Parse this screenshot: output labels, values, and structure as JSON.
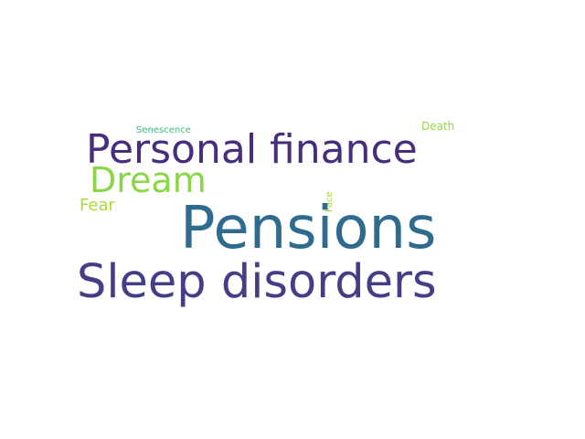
{
  "words": {
    "pensions": {
      "text": "Pensions",
      "color": "#2e6b8e"
    },
    "sleep_disorders": {
      "text": "Sleep disorders",
      "color": "#433e85"
    },
    "personal_finance": {
      "text": "Personal finance",
      "color": "#472d7b"
    },
    "dream": {
      "text": "Dream",
      "color": "#8bd646"
    },
    "fear": {
      "text": "Fear",
      "color": "#a8db34"
    },
    "senescence": {
      "text": "Senescence",
      "color": "#3bbb75"
    },
    "death": {
      "text": "Death",
      "color": "#95d840"
    },
    "face": {
      "text": "Face",
      "color": "#a5db36"
    }
  }
}
